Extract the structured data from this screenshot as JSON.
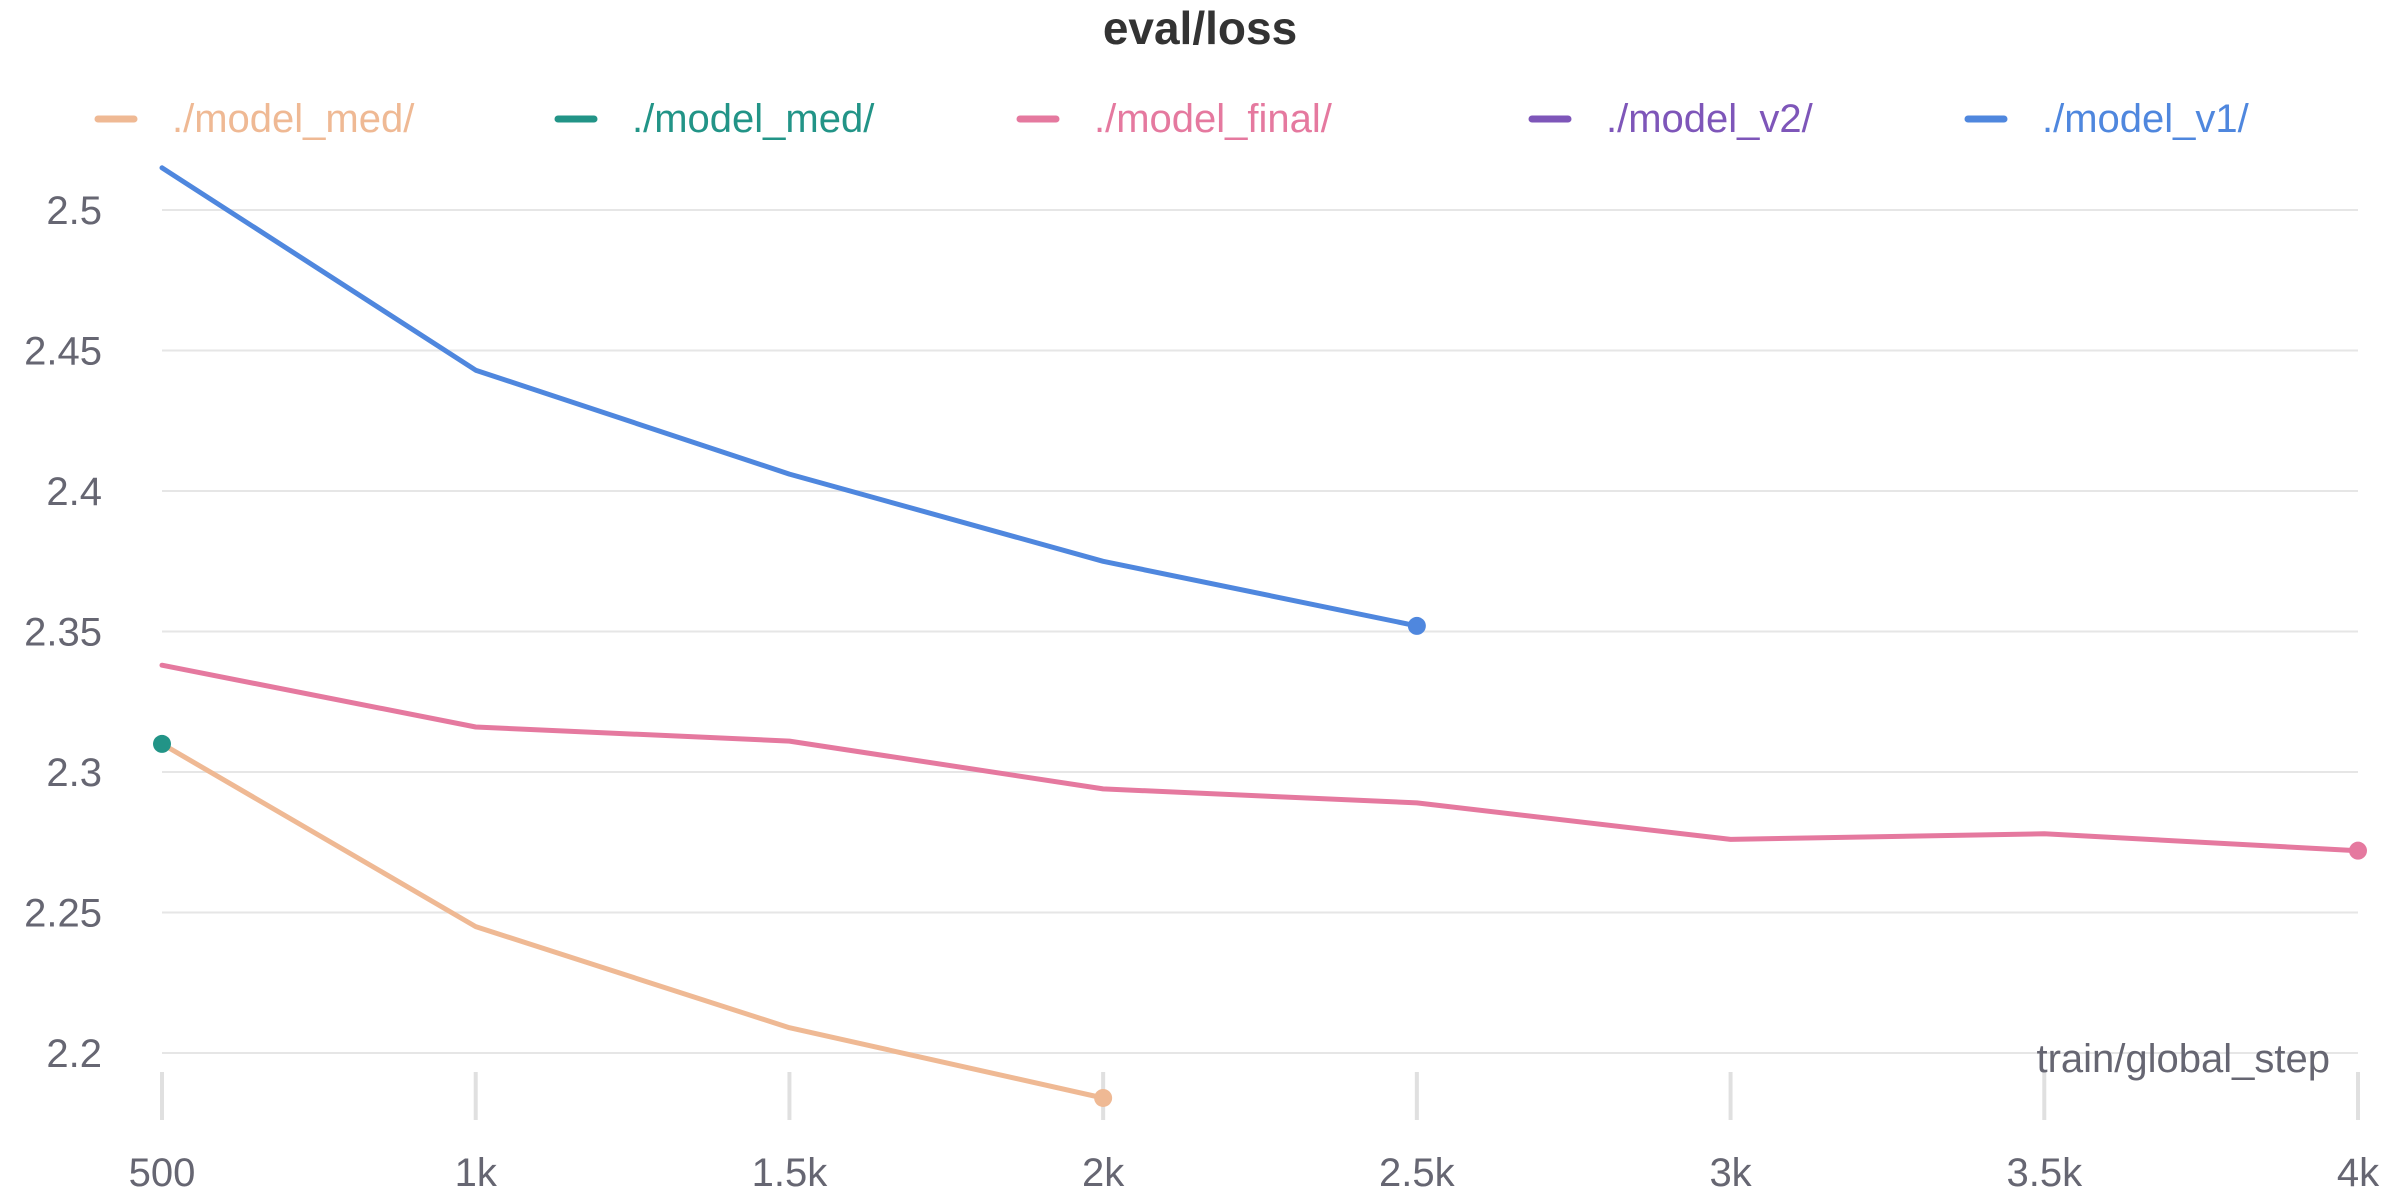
{
  "chart_data": {
    "type": "line",
    "title": "eval/loss",
    "xlabel": "train/global_step",
    "ylabel": "",
    "xlim": [
      500,
      4000
    ],
    "ylim": [
      2.185,
      2.515
    ],
    "x_ticks": [
      500,
      1000,
      1500,
      2000,
      2500,
      3000,
      3500,
      4000
    ],
    "x_tick_labels": [
      "500",
      "1k",
      "1.5k",
      "2k",
      "2.5k",
      "3k",
      "3.5k",
      "4k"
    ],
    "y_ticks": [
      2.2,
      2.25,
      2.3,
      2.35,
      2.4,
      2.45,
      2.5
    ],
    "y_tick_labels": [
      "2.2",
      "2.25",
      "2.3",
      "2.35",
      "2.4",
      "2.45",
      "2.5"
    ],
    "grid": true,
    "legend_position": "top",
    "series": [
      {
        "name": "./model_med/",
        "color": "#efb994",
        "x": [
          500,
          1000,
          1500,
          2000
        ],
        "y": [
          2.31,
          2.245,
          2.209,
          2.184
        ]
      },
      {
        "name": "./model_med/",
        "color": "#229487",
        "x": [
          500
        ],
        "y": [
          2.31
        ]
      },
      {
        "name": "./model_final/",
        "color": "#e5799f",
        "x": [
          500,
          1000,
          1500,
          2000,
          2500,
          3000,
          3500,
          4000
        ],
        "y": [
          2.338,
          2.316,
          2.311,
          2.294,
          2.289,
          2.276,
          2.278,
          2.272
        ]
      },
      {
        "name": "./model_v2/",
        "color": "#7e56b9",
        "x": [],
        "y": []
      },
      {
        "name": "./model_v1/",
        "color": "#4f87de",
        "x": [
          500,
          1000,
          1500,
          2000,
          2500
        ],
        "y": [
          2.515,
          2.443,
          2.406,
          2.375,
          2.352
        ]
      }
    ]
  }
}
